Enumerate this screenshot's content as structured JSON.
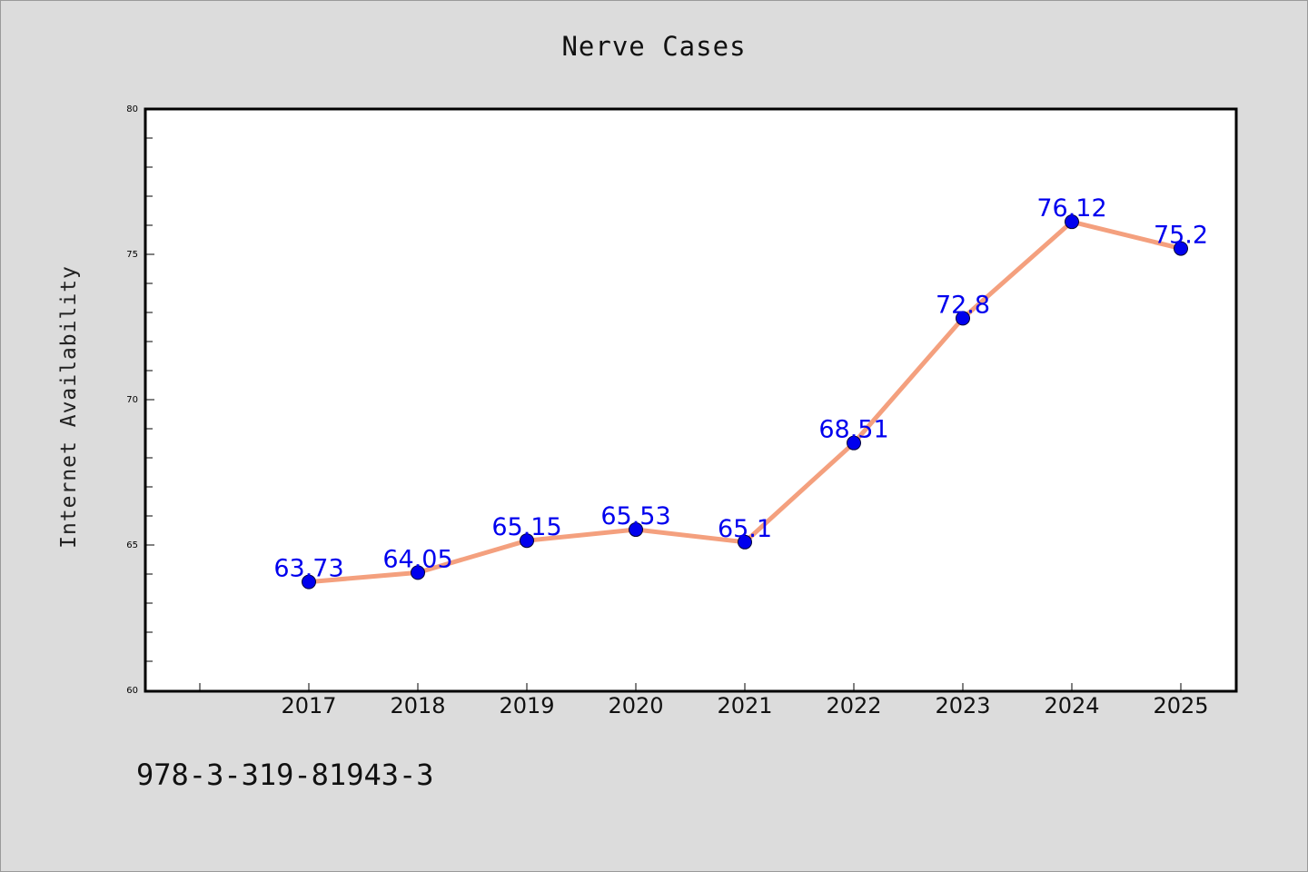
{
  "chart_data": {
    "type": "line",
    "title": "Nerve Cases",
    "xlabel": "",
    "ylabel": "Internet Availability",
    "categories": [
      "2017",
      "2018",
      "2019",
      "2020",
      "2021",
      "2022",
      "2023",
      "2024",
      "2025"
    ],
    "series": [
      {
        "values": [
          63.73,
          64.05,
          65.15,
          65.53,
          65.1,
          68.51,
          72.8,
          76.12,
          75.2
        ],
        "data_labels": [
          "63.73",
          "64.05",
          "65.15",
          "65.53",
          "65.1",
          "68.51",
          "72.8",
          "76.12",
          "75.2"
        ],
        "line_color": "#f4a07e",
        "marker_color": "#0000ee"
      }
    ],
    "ylim": [
      60,
      80
    ],
    "yticks": [
      "60",
      "65",
      "70",
      "75",
      "80"
    ],
    "grid": false,
    "legend": "none"
  },
  "footer_text": "978-3-319-81943-3",
  "colors": {
    "background": "#dcdcdc",
    "plot_background": "#ffffff",
    "label_color": "#0000ee"
  }
}
